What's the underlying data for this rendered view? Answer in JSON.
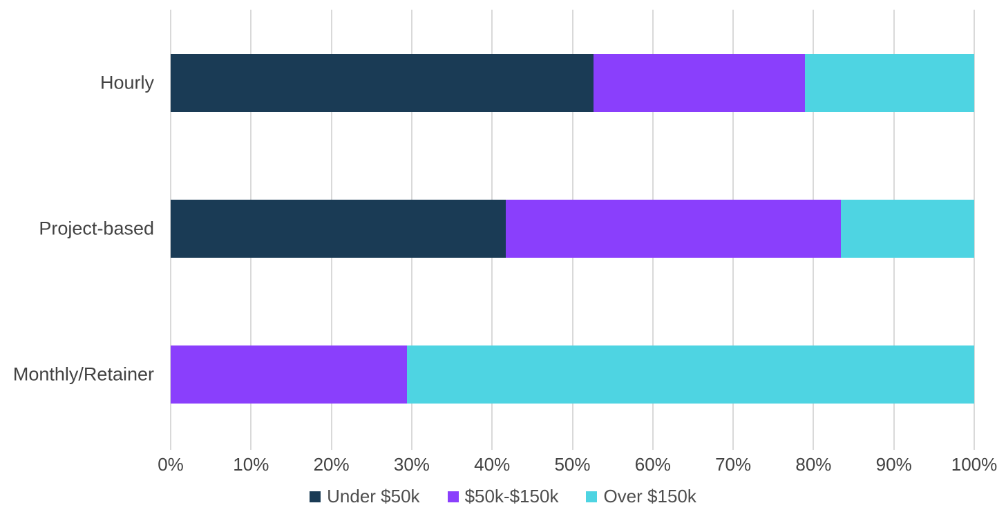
{
  "chart_data": {
    "type": "bar",
    "orientation": "horizontal",
    "stacked": true,
    "title": "",
    "xlabel": "",
    "ylabel": "",
    "categories": [
      "Hourly",
      "Project-based",
      "Monthly/Retainer"
    ],
    "series": [
      {
        "name": "Under $50k",
        "color": "#1a3b55",
        "values": [
          52.6,
          41.7,
          0
        ]
      },
      {
        "name": "$50k-$150k",
        "color": "#8a3ffc",
        "values": [
          26.3,
          41.7,
          29.4
        ]
      },
      {
        "name": "Over $150k",
        "color": "#4ed4e2",
        "values": [
          21.1,
          16.6,
          70.6
        ]
      }
    ],
    "x_ticks": [
      "0%",
      "10%",
      "20%",
      "30%",
      "40%",
      "50%",
      "60%",
      "70%",
      "80%",
      "90%",
      "100%"
    ],
    "xlim": [
      0,
      100
    ],
    "grid": true,
    "gridline_color": "#d9d9d9",
    "legend_position": "bottom",
    "text_color": "#424242"
  }
}
